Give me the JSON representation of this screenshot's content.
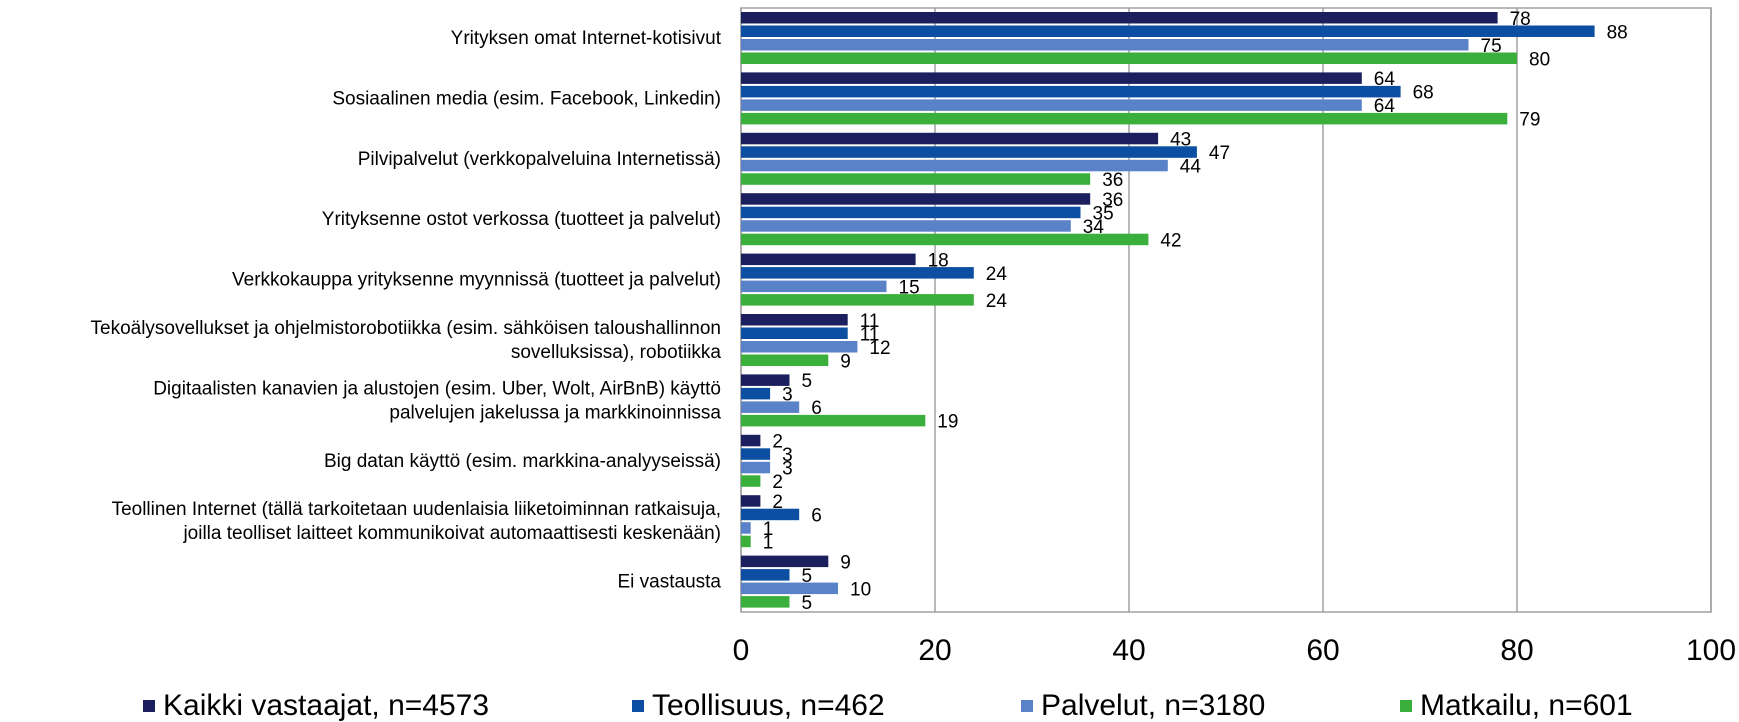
{
  "chart_data": {
    "type": "bar",
    "orientation": "horizontal",
    "categories": [
      "Yrityksen omat Internet-kotisivut",
      "Sosiaalinen media (esim. Facebook, Linkedin)",
      "Pilvipalvelut  (verkkopalveluina Internetissä)",
      "Yrityksenne ostot verkossa (tuotteet ja palvelut)",
      "Verkkokauppa yrityksenne myynnissä (tuotteet ja palvelut)",
      "Tekoälysovellukset ja ohjelmistorobotiikka (esim. sähköisen taloushallinnon\nsovelluksissa), robotiikka",
      "Digitaalisten kanavien ja alustojen (esim. Uber, Wolt, AirBnB) käyttö\npalvelujen jakelussa ja markkinoinnissa",
      "Big datan käyttö (esim. markkina-analyyseissä)",
      "Teollinen Internet (tällä tarkoitetaan uudenlaisia liiketoiminnan ratkaisuja,\njoilla teolliset laitteet kommunikoivat automaattisesti keskenään)",
      "Ei vastausta"
    ],
    "series": [
      {
        "name": "Kaikki vastaajat, n=4573",
        "color": "#1c1f5e",
        "values": [
          78,
          64,
          43,
          36,
          18,
          11,
          5,
          2,
          2,
          9
        ]
      },
      {
        "name": "Teollisuus, n=462",
        "color": "#0b4ea2",
        "values": [
          88,
          68,
          47,
          35,
          24,
          11,
          3,
          3,
          6,
          5
        ]
      },
      {
        "name": "Palvelut, n=3180",
        "color": "#5a82c8",
        "values": [
          75,
          64,
          44,
          34,
          15,
          12,
          6,
          3,
          1,
          10
        ]
      },
      {
        "name": "Matkailu, n=601",
        "color": "#3aaf3c",
        "values": [
          80,
          79,
          36,
          42,
          24,
          9,
          19,
          2,
          1,
          5
        ]
      }
    ],
    "xlim": [
      0,
      100
    ],
    "xticks": [
      0,
      20,
      40,
      60,
      80,
      100
    ],
    "grid": true,
    "legend": "bottom"
  }
}
